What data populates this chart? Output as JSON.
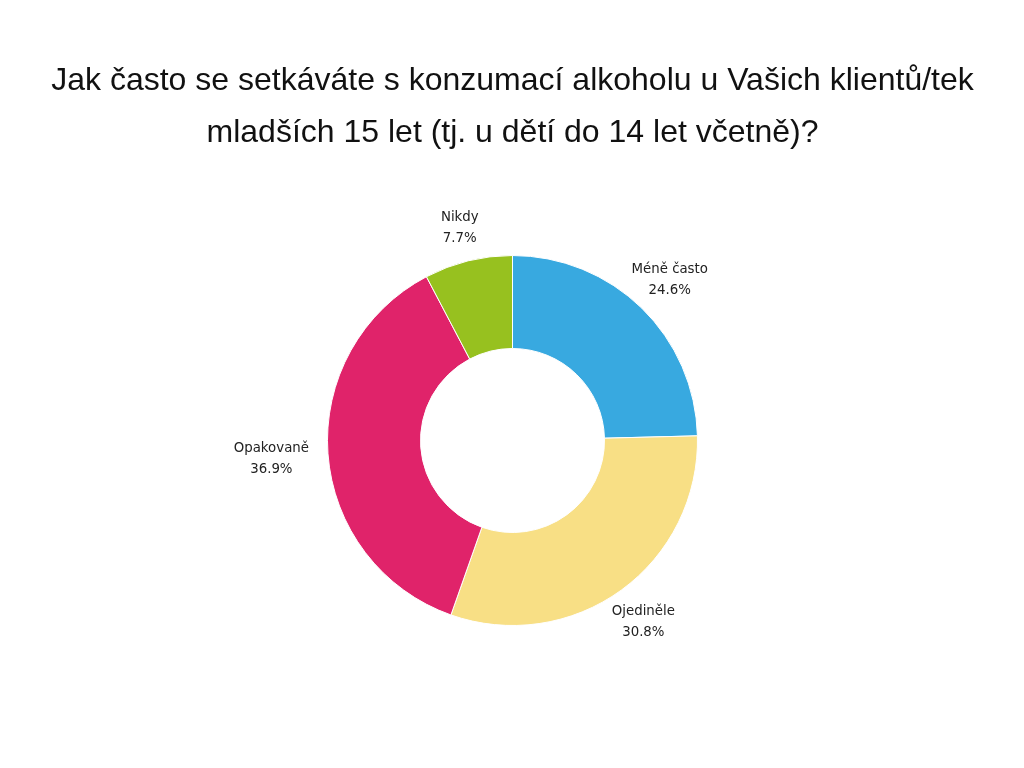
{
  "chart_data": {
    "type": "donut",
    "title": "Jak často se setkáváte s konzumací alkoholu u Vašich klientů/tek\nmladších 15 let (tj. u dětí do 14 let včetně)?",
    "categories": [
      "Méně často",
      "Ojediněle",
      "Opakovaně",
      "Nikdy"
    ],
    "values": [
      24.6,
      30.8,
      36.9,
      7.7
    ],
    "value_labels": [
      "24.6%",
      "30.8%",
      "36.9%",
      "7.7%"
    ],
    "colors": [
      "#38a9e0",
      "#f8df85",
      "#e0236a",
      "#97c11f"
    ]
  }
}
